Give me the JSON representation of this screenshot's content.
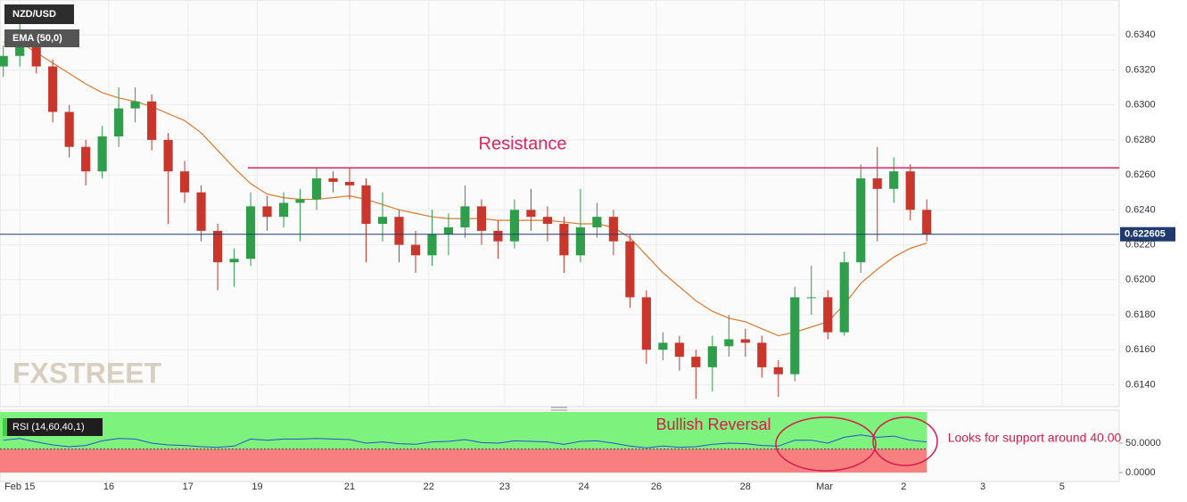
{
  "chart_data": {
    "type": "candlestick",
    "title": "NZD/USD",
    "up_color": "#2e9e4a",
    "down_color": "#c9372c",
    "x": [
      0,
      5,
      10,
      15,
      20,
      25,
      30,
      35,
      40,
      45,
      50,
      55,
      60,
      65,
      70,
      75,
      80,
      85,
      90,
      95,
      100,
      105,
      110,
      115,
      120,
      125,
      130,
      135,
      140,
      145,
      150,
      155,
      160,
      165,
      170,
      175,
      180,
      185,
      190,
      195,
      200,
      205,
      210,
      215,
      220,
      225,
      230,
      235,
      240,
      245,
      250,
      255,
      260,
      265,
      270,
      275,
      280
    ],
    "open": [
      0.6322,
      0.6328,
      0.6338,
      0.6322,
      0.6296,
      0.6276,
      0.6262,
      0.6282,
      0.6298,
      0.6302,
      0.628,
      0.6262,
      0.625,
      0.6228,
      0.621,
      0.6212,
      0.6242,
      0.6236,
      0.6244,
      0.6246,
      0.6258,
      0.6256,
      0.6254,
      0.6232,
      0.6236,
      0.622,
      0.6214,
      0.6226,
      0.623,
      0.6242,
      0.6228,
      0.6222,
      0.624,
      0.6236,
      0.6232,
      0.6214,
      0.623,
      0.6236,
      0.6222,
      0.619,
      0.616,
      0.6164,
      0.6156,
      0.615,
      0.6162,
      0.6166,
      0.6164,
      0.615,
      0.6146,
      0.619,
      0.619,
      0.617,
      0.621,
      0.6258,
      0.6252,
      0.6262,
      0.624
    ],
    "high": [
      0.6334,
      0.6347,
      0.6342,
      0.6326,
      0.63,
      0.628,
      0.6288,
      0.631,
      0.631,
      0.6306,
      0.6284,
      0.6268,
      0.6254,
      0.6232,
      0.6218,
      0.625,
      0.6248,
      0.625,
      0.6252,
      0.6264,
      0.6262,
      0.6264,
      0.6258,
      0.625,
      0.624,
      0.6228,
      0.624,
      0.6238,
      0.6254,
      0.6246,
      0.6234,
      0.6246,
      0.6252,
      0.6242,
      0.6236,
      0.6252,
      0.6244,
      0.624,
      0.6226,
      0.6194,
      0.617,
      0.6168,
      0.616,
      0.6168,
      0.618,
      0.6172,
      0.6168,
      0.6154,
      0.6196,
      0.6208,
      0.6194,
      0.6216,
      0.6266,
      0.6276,
      0.627,
      0.6266,
      0.6246
    ],
    "low": [
      0.6316,
      0.6322,
      0.6318,
      0.629,
      0.627,
      0.6254,
      0.6258,
      0.6276,
      0.629,
      0.6274,
      0.6232,
      0.6244,
      0.6222,
      0.6194,
      0.6196,
      0.6208,
      0.6228,
      0.623,
      0.6222,
      0.624,
      0.625,
      0.6246,
      0.621,
      0.6222,
      0.621,
      0.6204,
      0.6208,
      0.6214,
      0.6224,
      0.622,
      0.6212,
      0.6218,
      0.6228,
      0.6222,
      0.6204,
      0.621,
      0.6224,
      0.6214,
      0.6184,
      0.6152,
      0.6154,
      0.6148,
      0.6132,
      0.6136,
      0.6156,
      0.6156,
      0.6144,
      0.6133,
      0.6142,
      0.618,
      0.6166,
      0.6168,
      0.6204,
      0.6222,
      0.6244,
      0.6234,
      0.6222
    ],
    "close": [
      0.6328,
      0.6338,
      0.6322,
      0.6296,
      0.6276,
      0.6262,
      0.6282,
      0.6298,
      0.6302,
      0.628,
      0.6262,
      0.625,
      0.6228,
      0.621,
      0.6212,
      0.6242,
      0.6236,
      0.6244,
      0.6246,
      0.6258,
      0.6256,
      0.6254,
      0.6232,
      0.6236,
      0.622,
      0.6214,
      0.6226,
      0.623,
      0.6242,
      0.6228,
      0.6222,
      0.624,
      0.6236,
      0.6232,
      0.6214,
      0.623,
      0.6236,
      0.6222,
      0.619,
      0.616,
      0.6164,
      0.6156,
      0.615,
      0.6162,
      0.6166,
      0.6164,
      0.615,
      0.6146,
      0.619,
      0.619,
      0.617,
      0.621,
      0.6258,
      0.6252,
      0.6262,
      0.624,
      0.622605
    ],
    "ema": {
      "label": "EMA (50,0)",
      "color": "#e0782a",
      "values": [
        0.6336,
        0.6336,
        0.633,
        0.6324,
        0.6318,
        0.6312,
        0.6307,
        0.6304,
        0.6302,
        0.6299,
        0.6295,
        0.6291,
        0.6284,
        0.6274,
        0.6264,
        0.6255,
        0.6249,
        0.6247,
        0.6246,
        0.6246,
        0.6247,
        0.6248,
        0.6246,
        0.6243,
        0.624,
        0.6238,
        0.6236,
        0.6235,
        0.6235,
        0.6235,
        0.6234,
        0.6234,
        0.6234,
        0.6234,
        0.6233,
        0.6232,
        0.6232,
        0.623,
        0.6224,
        0.6214,
        0.6204,
        0.6196,
        0.6188,
        0.6182,
        0.6178,
        0.6176,
        0.6172,
        0.6168,
        0.617,
        0.6173,
        0.6176,
        0.6186,
        0.6198,
        0.6206,
        0.6213,
        0.6218,
        0.6221
      ]
    },
    "last_price": 0.622605,
    "last_price_color": "#1f3a6e",
    "resistance": {
      "text": "Resistance",
      "value": 0.6264,
      "color": "#e0245e"
    },
    "xlim": [
      -1,
      337
    ],
    "xticks": [
      {
        "value": 5,
        "label": "Feb 15"
      },
      {
        "value": 32,
        "label": "16"
      },
      {
        "value": 56,
        "label": "17"
      },
      {
        "value": 77,
        "label": "19"
      },
      {
        "value": 105,
        "label": "21"
      },
      {
        "value": 129,
        "label": "22"
      },
      {
        "value": 152,
        "label": "23"
      },
      {
        "value": 176,
        "label": "24"
      },
      {
        "value": 198,
        "label": "26"
      },
      {
        "value": 225,
        "label": "28"
      },
      {
        "value": 249,
        "label": "Mar"
      },
      {
        "value": 273,
        "label": "2"
      },
      {
        "value": 297,
        "label": "3"
      },
      {
        "value": 321,
        "label": "5"
      }
    ],
    "ylim": [
      0.6128,
      0.636
    ],
    "yticks": [
      {
        "value": 0.614,
        "label": "0.6140"
      },
      {
        "value": 0.616,
        "label": "0.6160"
      },
      {
        "value": 0.618,
        "label": "0.6180"
      },
      {
        "value": 0.62,
        "label": "0.6200"
      },
      {
        "value": 0.622,
        "label": "0.6220"
      },
      {
        "value": 0.624,
        "label": "0.6240"
      },
      {
        "value": 0.626,
        "label": "0.6260"
      },
      {
        "value": 0.628,
        "label": "0.6280"
      },
      {
        "value": 0.63,
        "label": "0.6300"
      },
      {
        "value": 0.632,
        "label": "0.6320"
      },
      {
        "value": 0.634,
        "label": "0.6340"
      }
    ],
    "grid": true,
    "watermark": "FXSTREET",
    "rsi": {
      "label": "RSI (14,60,40,1)",
      "color": "#2a4fd6",
      "level": 40,
      "ylim": [
        0,
        103
      ],
      "yticks": [
        {
          "value": 0,
          "label": "0.0000"
        },
        {
          "value": 50,
          "label": "50.0000"
        }
      ],
      "values": [
        55,
        58,
        52,
        47,
        44,
        46,
        54,
        58,
        57,
        50,
        47,
        46,
        44,
        43,
        45,
        57,
        55,
        57,
        57,
        58,
        57,
        56,
        50,
        52,
        49,
        48,
        52,
        53,
        56,
        51,
        50,
        54,
        53,
        52,
        48,
        53,
        54,
        50,
        45,
        42,
        45,
        43,
        44,
        48,
        50,
        49,
        46,
        45,
        55,
        55,
        50,
        60,
        64,
        60,
        62,
        55,
        52
      ]
    },
    "annotations": [
      "Bullish Reversal",
      "Looks for support  around 40.00"
    ],
    "annotation_color": "#d81b4e"
  }
}
